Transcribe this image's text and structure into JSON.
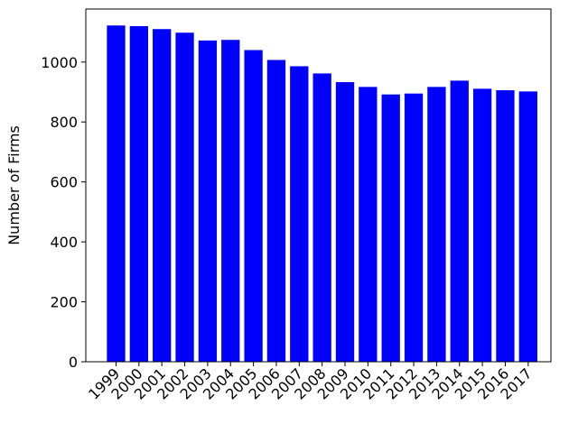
{
  "chart_data": {
    "type": "bar",
    "title": "",
    "xlabel": "",
    "ylabel": "Number of Firms",
    "categories": [
      "1999",
      "2000",
      "2001",
      "2002",
      "2003",
      "2004",
      "2005",
      "2006",
      "2007",
      "2008",
      "2009",
      "2010",
      "2011",
      "2012",
      "2013",
      "2014",
      "2015",
      "2016",
      "2017"
    ],
    "values": [
      1122,
      1120,
      1110,
      1098,
      1072,
      1074,
      1040,
      1007,
      986,
      962,
      933,
      917,
      892,
      895,
      917,
      938,
      911,
      906,
      902
    ],
    "ylim": [
      0,
      1177
    ],
    "yticks": [
      0,
      200,
      400,
      600,
      800,
      1000
    ],
    "bar_color": "#0000ff",
    "grid": false,
    "legend": "none",
    "xtick_rotation": "45 degrees"
  }
}
